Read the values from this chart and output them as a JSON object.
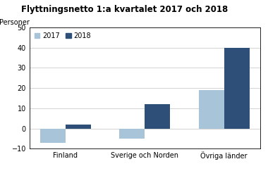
{
  "title": "Flyttningsnetto 1:a kvartalet 2017 och 2018",
  "ylabel": "Personer",
  "categories": [
    "Finland",
    "Sverige och Norden",
    "Övriga länder"
  ],
  "values_2017": [
    -7,
    -5,
    19
  ],
  "values_2018": [
    2,
    12,
    40
  ],
  "color_2017": "#a8c4d8",
  "color_2018": "#2e4f78",
  "ylim": [
    -10,
    50
  ],
  "yticks": [
    -10,
    0,
    10,
    20,
    30,
    40,
    50
  ],
  "legend_labels": [
    "2017",
    "2018"
  ],
  "bar_width": 0.32,
  "background_color": "#ffffff"
}
